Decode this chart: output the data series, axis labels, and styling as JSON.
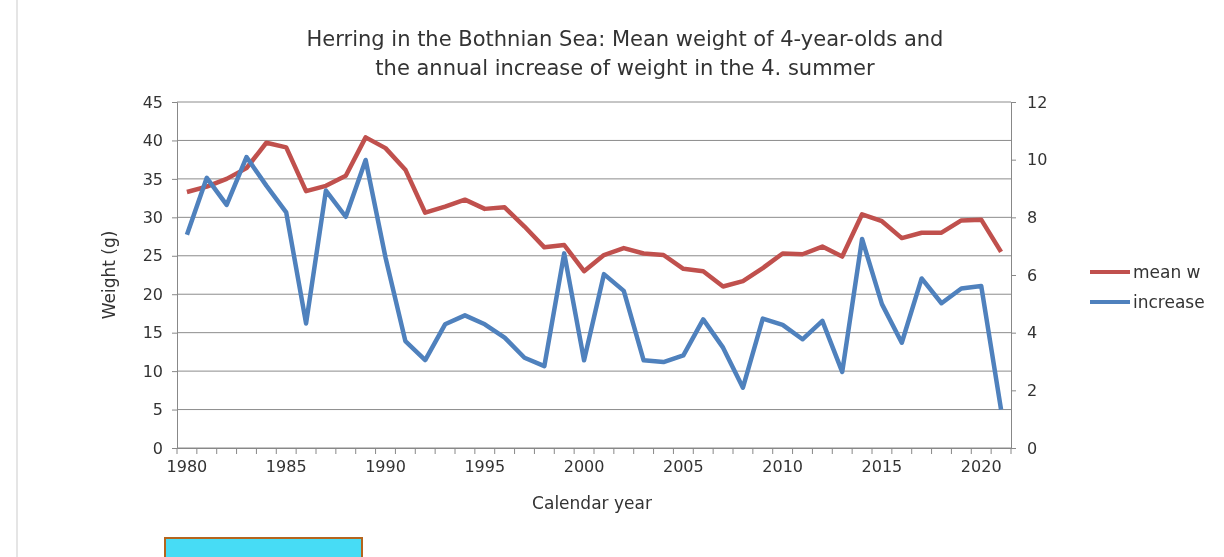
{
  "chart_data": {
    "type": "line",
    "title": "Herring in the Bothnian Sea: Mean weight of 4-year-olds and\nthe annual increase of weight in the 4. summer",
    "xlabel": "Calendar year",
    "ylabel": "Weight (g)",
    "categories": [
      "1980",
      null,
      null,
      null,
      null,
      "1985",
      null,
      null,
      null,
      null,
      "1990",
      null,
      null,
      null,
      null,
      "1995",
      null,
      null,
      null,
      null,
      "2000",
      null,
      null,
      null,
      null,
      "2005",
      null,
      null,
      null,
      null,
      "2010",
      null,
      null,
      null,
      null,
      "2015",
      null,
      null,
      null,
      null,
      "2020",
      null
    ],
    "series": [
      {
        "name": "mean w",
        "color": "#c0504d",
        "values": [
          33.3,
          34.0,
          35.0,
          36.4,
          39.7,
          39.1,
          33.4,
          34.1,
          35.4,
          40.4,
          39.0,
          36.2,
          30.6,
          31.4,
          32.3,
          31.1,
          31.3,
          28.8,
          26.1,
          26.4,
          23.0,
          25.1,
          26.0,
          25.3,
          25.1,
          23.3,
          23.0,
          21.0,
          21.7,
          23.4,
          25.3,
          25.2,
          26.2,
          24.9,
          30.4,
          29.5,
          27.3,
          28.0,
          28.0,
          29.6,
          29.7,
          25.5
        ]
      },
      {
        "name": "increase",
        "color": "#4f81bd",
        "axis": "y2",
        "values": [
          7.4,
          9.37,
          8.43,
          10.09,
          9.1,
          8.17,
          4.32,
          8.93,
          8.02,
          9.99,
          6.61,
          3.71,
          3.05,
          4.29,
          4.6,
          4.29,
          3.83,
          3.13,
          2.84,
          6.75,
          3.04,
          6.03,
          5.45,
          3.04,
          2.98,
          3.21,
          4.46,
          3.48,
          2.09,
          4.49,
          4.27,
          3.77,
          4.41,
          2.64,
          7.25,
          4.99,
          3.65,
          5.88,
          5.02,
          5.53,
          5.62,
          1.33
        ]
      }
    ],
    "ylim": [
      0,
      45
    ],
    "yticks": [
      0,
      5,
      10,
      15,
      20,
      25,
      30,
      35,
      40,
      45
    ],
    "y2lim": [
      0,
      12
    ],
    "y2ticks": [
      0,
      2,
      4,
      6,
      8,
      10,
      12
    ],
    "grid": "y",
    "legend": "right",
    "marker": "none",
    "line_style": "solid"
  }
}
